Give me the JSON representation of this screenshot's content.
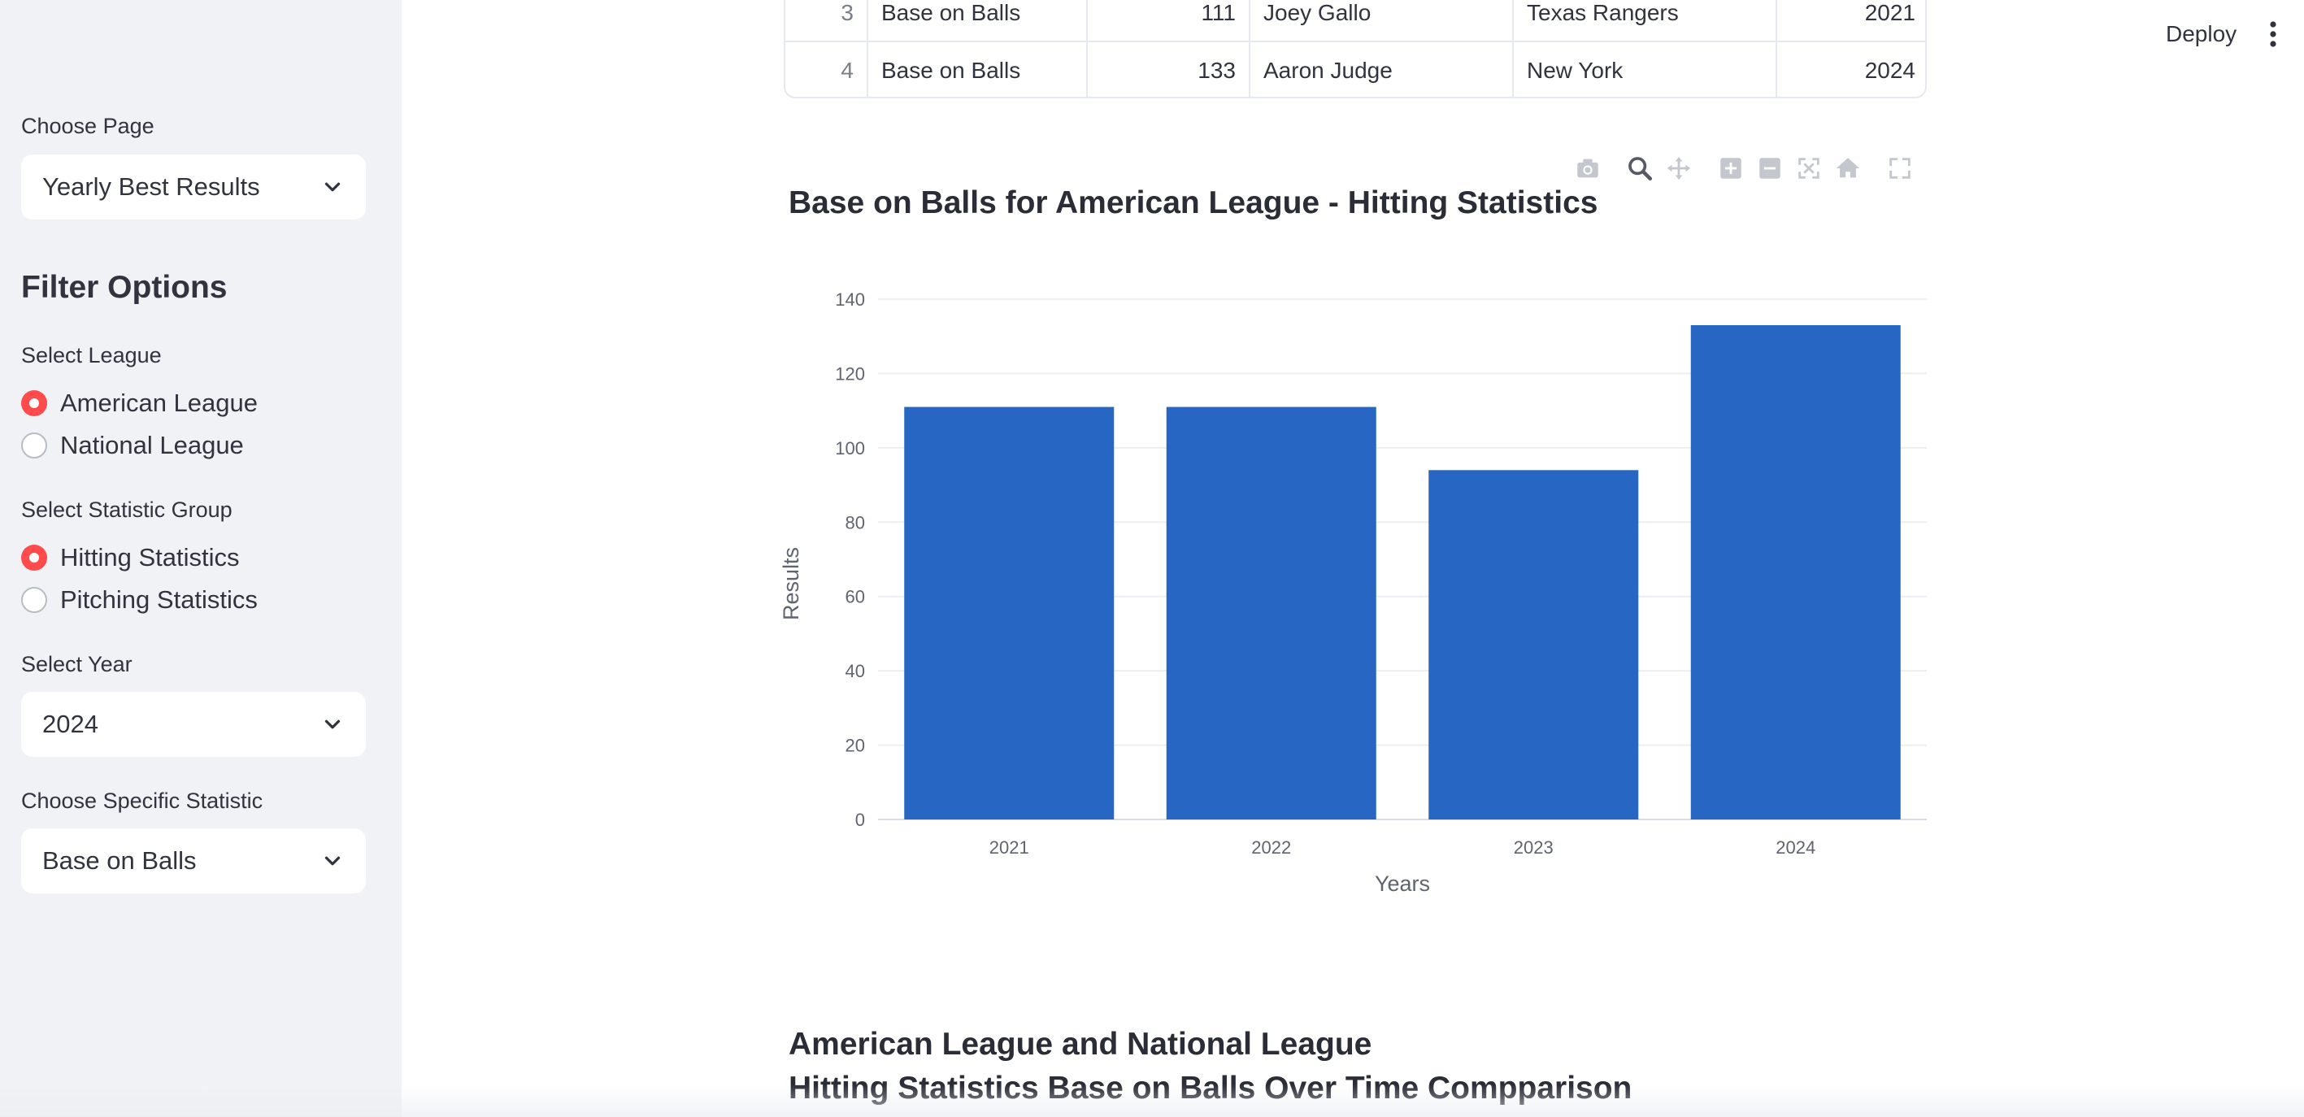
{
  "sidebar": {
    "choose_page_label": "Choose Page",
    "page_select_value": "Yearly Best Results",
    "filter_heading": "Filter Options",
    "league_label": "Select League",
    "league_options": [
      "American League",
      "National League"
    ],
    "league_selected": 0,
    "stat_group_label": "Select Statistic Group",
    "stat_group_options": [
      "Hitting Statistics",
      "Pitching Statistics"
    ],
    "stat_group_selected": 0,
    "year_label": "Select Year",
    "year_value": "2024",
    "specific_stat_label": "Choose Specific Statistic",
    "specific_stat_value": "Base on Balls"
  },
  "header": {
    "deploy_label": "Deploy"
  },
  "table": {
    "rows": [
      [
        "3",
        "Base on Balls",
        "111",
        "Joey Gallo",
        "Texas Rangers",
        "2021"
      ],
      [
        "4",
        "Base on Balls",
        "133",
        "Aaron Judge",
        "New York",
        "2024"
      ]
    ]
  },
  "modebar": {
    "icons": [
      "camera-icon",
      "zoom-icon",
      "pan-icon",
      "zoom-in-icon",
      "zoom-out-icon",
      "autoscale-icon",
      "reset-axes-icon",
      "fullscreen-icon"
    ]
  },
  "chart_data": {
    "type": "bar",
    "title": "Base on Balls for American League - Hitting Statistics",
    "categories": [
      "2021",
      "2022",
      "2023",
      "2024"
    ],
    "values": [
      111,
      111,
      94,
      133
    ],
    "xlabel": "Years",
    "ylabel": "Results",
    "ylim": [
      0,
      140
    ],
    "yticks": [
      0,
      20,
      40,
      60,
      80,
      100,
      120,
      140
    ],
    "grid": true,
    "bar_color": "#2767c3"
  },
  "section": {
    "heading_line1": "American League and National League",
    "heading_line2": "Hitting Statistics Base on Balls Over Time Compparison"
  },
  "colors": {
    "accent": "#ff4b4b",
    "sidebar_bg": "#f0f2f6",
    "text": "#31333f"
  }
}
